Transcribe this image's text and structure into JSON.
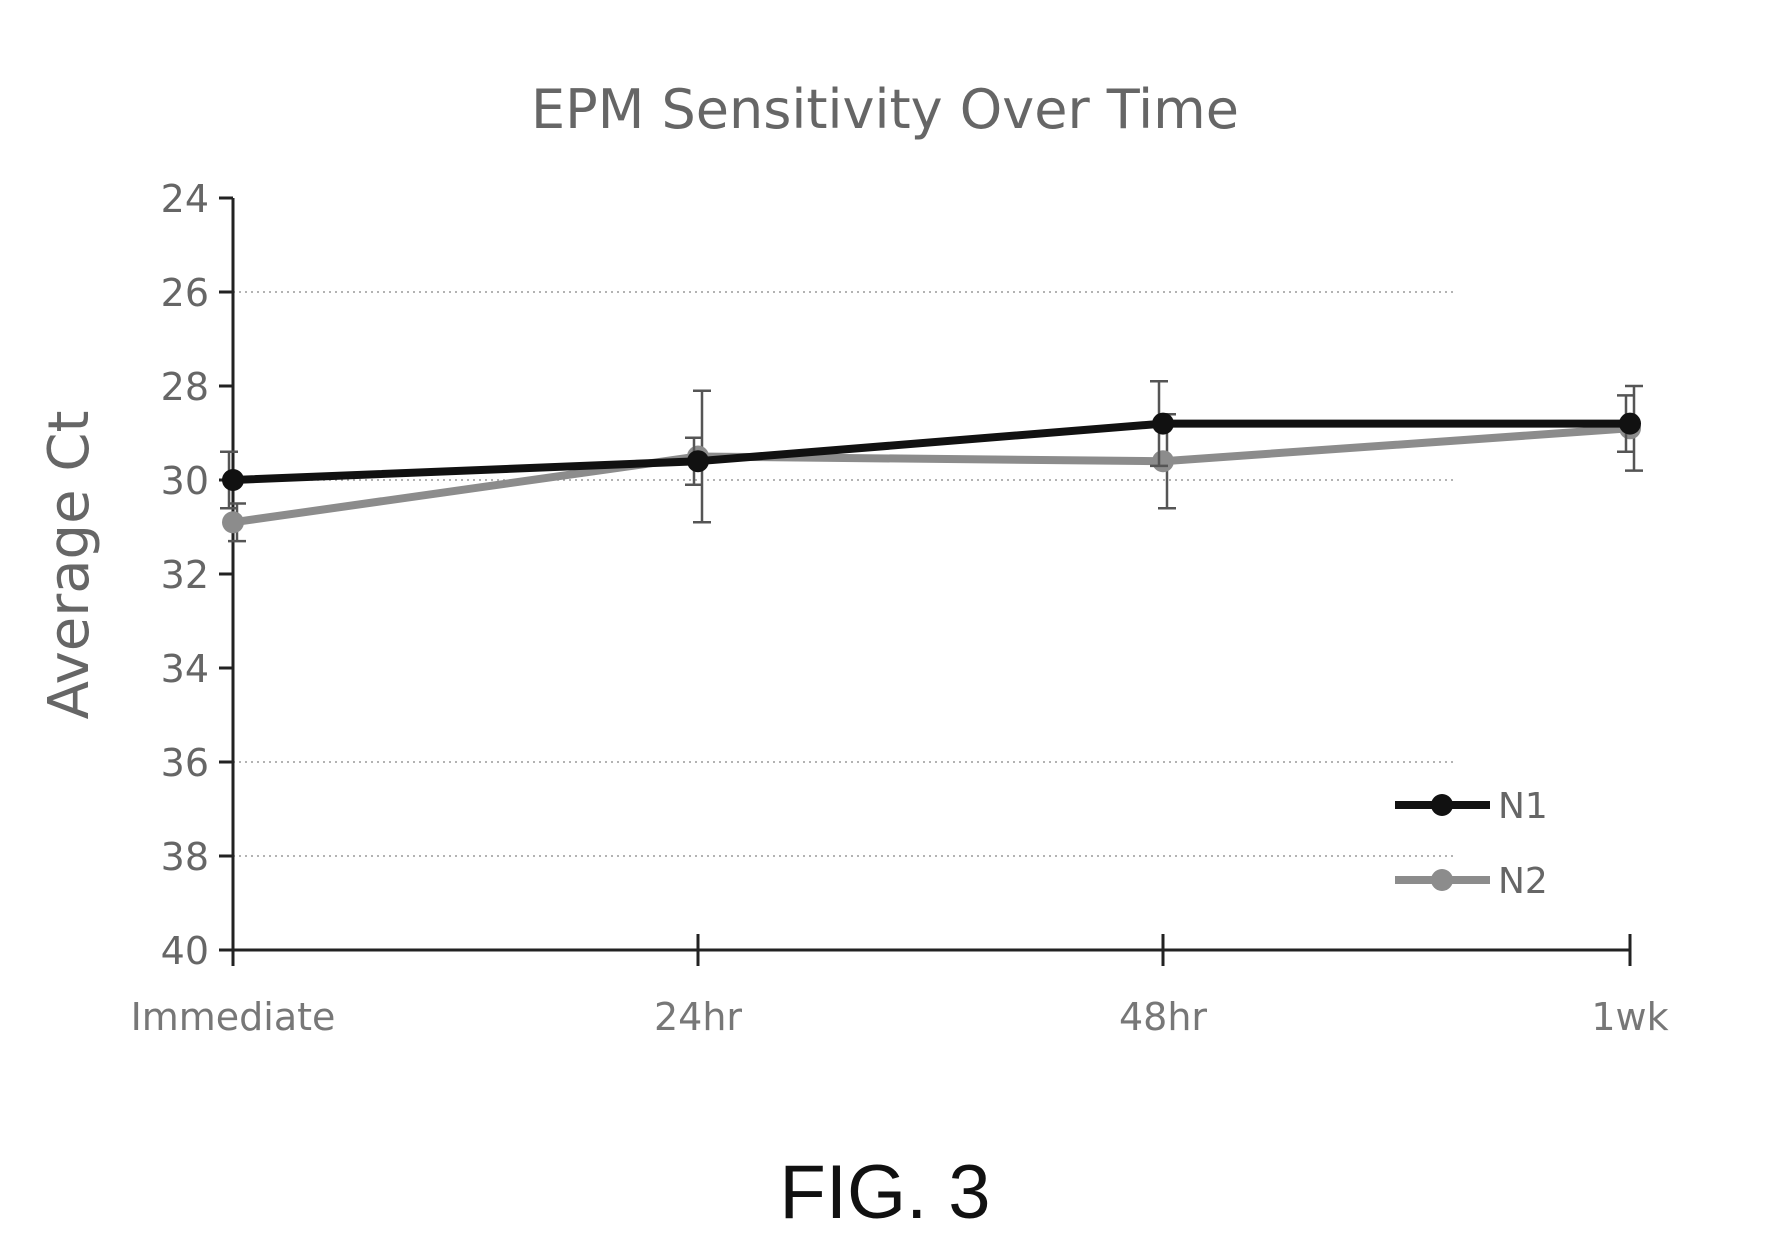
{
  "caption": "FIG. 3",
  "colors": {
    "n1": "#111111",
    "n2": "#8c8c8c",
    "axis": "#222222",
    "grid": "#9a9a9a",
    "text": "#666666"
  },
  "chart_data": {
    "type": "line",
    "title": "EPM Sensitivity Over Time",
    "xlabel": "",
    "ylabel": "Average Ct",
    "categories": [
      "Immediate",
      "24hr",
      "48hr",
      "1wk"
    ],
    "ylim": [
      24,
      40
    ],
    "y_reversed": true,
    "y_ticks": [
      24,
      26,
      28,
      30,
      32,
      34,
      36,
      38,
      40
    ],
    "grid": "horizontal dotted at 26, 30, 36, 38",
    "grid_values": [
      26,
      30,
      36,
      38
    ],
    "legend_position": "bottom-right",
    "series": [
      {
        "name": "N1",
        "values": [
          30.0,
          29.6,
          28.8,
          28.8
        ],
        "error": [
          0.6,
          0.5,
          0.9,
          0.6
        ],
        "color": "#111111"
      },
      {
        "name": "N2",
        "values": [
          30.9,
          29.5,
          29.6,
          28.9
        ],
        "error": [
          0.4,
          1.4,
          1.0,
          0.9
        ],
        "color": "#8c8c8c"
      }
    ]
  }
}
